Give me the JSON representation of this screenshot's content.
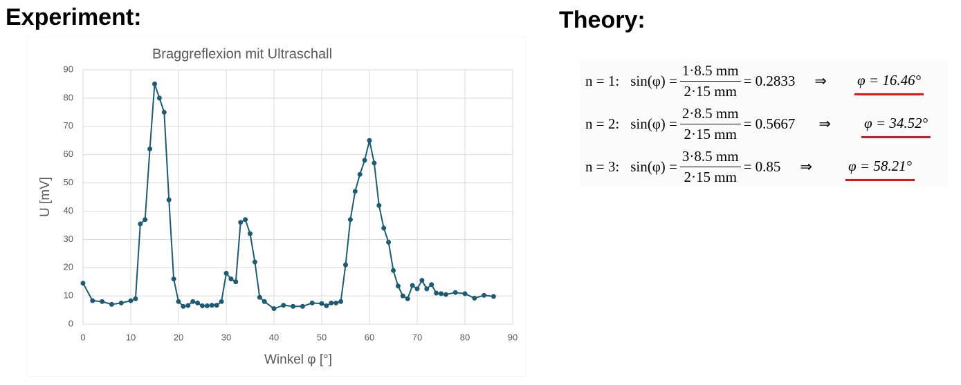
{
  "headings": {
    "left": "Experiment:",
    "right": "Theory:"
  },
  "chart_data": {
    "type": "line",
    "title": "Braggreflexion mit Ultraschall",
    "x_label": "Winkel φ [°]",
    "y_label": "U [mV]",
    "x": [
      0,
      2,
      4,
      6,
      8,
      10,
      11,
      12,
      13,
      14,
      15,
      16,
      17,
      18,
      19,
      20,
      21,
      22,
      23,
      24,
      25,
      26,
      27,
      28,
      29,
      30,
      31,
      32,
      33,
      34,
      35,
      36,
      37,
      38,
      40,
      42,
      44,
      46,
      48,
      50,
      51,
      52,
      53,
      54,
      55,
      56,
      57,
      58,
      59,
      60,
      61,
      62,
      63,
      64,
      65,
      66,
      67,
      68,
      69,
      70,
      71,
      72,
      73,
      74,
      75,
      76,
      78,
      80,
      82,
      84,
      86
    ],
    "series": [
      {
        "color": "#1d5b73",
        "values": [
          14.5,
          8.3,
          8,
          7,
          7.5,
          8.3,
          9,
          35.5,
          37,
          62,
          85,
          80,
          75,
          44,
          16,
          8,
          6.3,
          6.6,
          8,
          7.5,
          6.5,
          6.5,
          6.7,
          6.7,
          8,
          18,
          16,
          15,
          36,
          37,
          32,
          22,
          9.5,
          8,
          5.5,
          6.7,
          6.3,
          6.3,
          7.5,
          7.3,
          6.5,
          7.5,
          7.5,
          8,
          21,
          37,
          47,
          53,
          58,
          65,
          57,
          42,
          34,
          29,
          19,
          13.5,
          10,
          9,
          13.7,
          12.5,
          15.5,
          12.5,
          14,
          11,
          10.8,
          10.5,
          11.2,
          10.8,
          9.2,
          10.2,
          9.8
        ]
      }
    ],
    "xlim": [
      0,
      90
    ],
    "xticks": [
      0,
      10,
      20,
      30,
      40,
      50,
      60,
      70,
      80,
      90
    ],
    "ylim": [
      0,
      90
    ],
    "yticks": [
      0,
      10,
      20,
      30,
      40,
      50,
      60,
      70,
      80,
      90
    ],
    "grid": true
  },
  "theory": {
    "rows": [
      {
        "label": "n = 1:",
        "lhs": "sin(φ) =",
        "numerator": "1·8.5 mm",
        "denominator": "2·15 mm",
        "result": "= 0.2833",
        "arrow": "⇒",
        "answer": "φ = 16.46°"
      },
      {
        "label": "n = 2:",
        "lhs": "sin(φ) =",
        "numerator": "2·8.5 mm",
        "denominator": "2·15 mm",
        "result": "= 0.5667",
        "arrow": "⇒",
        "answer": "φ = 34.52°"
      },
      {
        "label": "n = 3:",
        "lhs": "sin(φ) =",
        "numerator": "3·8.5 mm",
        "denominator": "2·15 mm",
        "result": "= 0.85",
        "arrow": "⇒",
        "answer": "φ = 58.21°"
      }
    ]
  }
}
